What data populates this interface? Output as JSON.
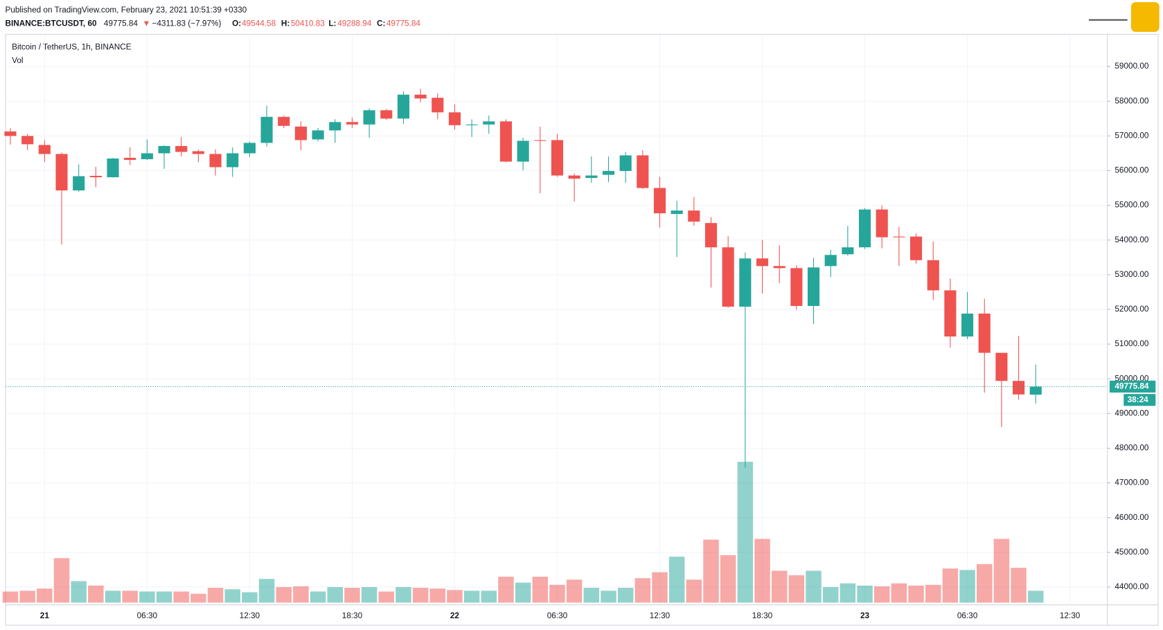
{
  "chart_data": {
    "type": "candlestick",
    "published": "Published on TradingView.com, February 23, 2021 10:51:39 +0330",
    "symbol": "BINANCE:BTCUSDT, 60",
    "change": "−4311.83 (−7.97%)",
    "title": "Bitcoin / TetherUS, 1h, BINANCE",
    "volume_label": "Vol",
    "countdown": "38:24",
    "up_color": "#26a69a",
    "down_color": "#ef5350",
    "grid": true,
    "categories": [
      null,
      null,
      "21",
      null,
      null,
      null,
      null,
      null,
      "06:30",
      null,
      null,
      null,
      null,
      null,
      "12:30",
      null,
      null,
      null,
      null,
      null,
      "18:30",
      null,
      null,
      null,
      null,
      null,
      "22",
      null,
      null,
      null,
      null,
      null,
      "06:30",
      null,
      null,
      null,
      null,
      null,
      "12:30",
      null,
      null,
      null,
      null,
      null,
      "18:30",
      null,
      null,
      null,
      null,
      null,
      "23",
      null,
      null,
      null,
      null,
      null,
      "06:30",
      null,
      null,
      null,
      null,
      null,
      "12:30",
      null,
      null
    ],
    "open": [
      57130,
      57000,
      56740,
      56480,
      55430,
      55850,
      55810,
      56370,
      56330,
      56500,
      56710,
      56560,
      56480,
      56100,
      56500,
      56800,
      57550,
      57270,
      56900,
      57160,
      57400,
      57330,
      57740,
      57500,
      58190,
      58100,
      57680,
      57310,
      57330,
      57420,
      56260,
      56880,
      56880,
      55860,
      55790,
      55880,
      55990,
      56440,
      55500,
      54750,
      54850,
      54490,
      53790,
      52080,
      53470,
      53250,
      53190,
      52100,
      53250,
      53590,
      53790,
      54880,
      54100,
      54100,
      53420,
      52550,
      51220,
      51880,
      50750,
      49940,
      49544.58,
      null,
      null,
      null,
      null
    ],
    "high": [
      57230,
      57060,
      56880,
      56520,
      56180,
      56110,
      56370,
      56670,
      56900,
      56730,
      56970,
      56610,
      56610,
      56670,
      56840,
      57870,
      57590,
      57420,
      57230,
      57480,
      57530,
      57800,
      57780,
      58290,
      58360,
      58230,
      57910,
      57480,
      57590,
      57480,
      56950,
      57270,
      57060,
      55920,
      56410,
      56410,
      56540,
      56590,
      55820,
      55130,
      55240,
      54660,
      54110,
      53640,
      54000,
      53850,
      53270,
      53490,
      53720,
      54410,
      54920,
      55000,
      54380,
      54190,
      53960,
      52890,
      52500,
      52310,
      50750,
      51240,
      50410.83,
      null,
      null,
      null,
      null
    ],
    "low": [
      56750,
      56590,
      56240,
      53870,
      55390,
      55520,
      55800,
      56160,
      56310,
      56050,
      56410,
      56240,
      55860,
      55820,
      56390,
      56690,
      57230,
      56590,
      56840,
      56800,
      57230,
      56950,
      57460,
      57350,
      57970,
      57480,
      57180,
      56970,
      57060,
      56240,
      56010,
      55350,
      55820,
      55110,
      55650,
      55670,
      55650,
      55470,
      54360,
      53510,
      54410,
      52630,
      52050,
      47440,
      52460,
      52760,
      51990,
      51580,
      52930,
      53550,
      53740,
      53760,
      53250,
      53320,
      52270,
      50900,
      51140,
      49600,
      48610,
      49400,
      49288.94,
      null,
      null,
      null,
      null
    ],
    "close": [
      57000,
      56760,
      56480,
      55430,
      55840,
      55810,
      56350,
      56310,
      56500,
      56710,
      56540,
      56480,
      56100,
      56500,
      56800,
      57550,
      57290,
      56880,
      57160,
      57400,
      57330,
      57740,
      57500,
      58190,
      58080,
      57680,
      57310,
      57330,
      57420,
      56260,
      56860,
      56860,
      55860,
      55770,
      55860,
      55990,
      56440,
      55500,
      54770,
      54850,
      54530,
      53790,
      52080,
      53470,
      53250,
      53190,
      52100,
      53210,
      53570,
      53790,
      54880,
      54080,
      54080,
      53420,
      52550,
      51220,
      51880,
      50750,
      49940,
      49550,
      49775.84,
      null,
      null,
      null,
      null
    ],
    "volume": [
      15,
      16,
      19,
      60,
      29,
      23,
      16,
      16,
      15,
      15,
      15,
      12,
      20,
      18,
      14,
      32,
      21,
      22,
      15,
      21,
      20,
      21,
      15,
      21,
      20,
      19,
      17,
      16,
      16,
      35,
      27,
      35,
      24,
      31,
      20,
      16,
      20,
      33,
      41,
      62,
      31,
      85,
      64,
      190,
      86,
      43,
      37,
      43,
      21,
      26,
      23,
      22,
      26,
      23,
      24,
      46,
      44,
      52,
      86,
      47,
      16,
      null,
      null,
      null,
      null
    ],
    "ylim": [
      43550,
      59830
    ],
    "yticks": [
      {
        "value": 44000,
        "label": "44000.00"
      },
      {
        "value": 45000,
        "label": "45000.00"
      },
      {
        "value": 46000,
        "label": "46000.00"
      },
      {
        "value": 47000,
        "label": "47000.00"
      },
      {
        "value": 48000,
        "label": "48000.00"
      },
      {
        "value": 49000,
        "label": "49000.00"
      },
      {
        "value": 50000,
        "label": "50000.00"
      },
      {
        "value": 51000,
        "label": "51000.00"
      },
      {
        "value": 52000,
        "label": "52000.00"
      },
      {
        "value": 53000,
        "label": "53000.00"
      },
      {
        "value": 54000,
        "label": "54000.00"
      },
      {
        "value": 55000,
        "label": "55000.00"
      },
      {
        "value": 56000,
        "label": "56000.00"
      },
      {
        "value": 57000,
        "label": "57000.00"
      },
      {
        "value": 58000,
        "label": "58000.00"
      },
      {
        "value": 59000,
        "label": "59000.00"
      }
    ]
  }
}
